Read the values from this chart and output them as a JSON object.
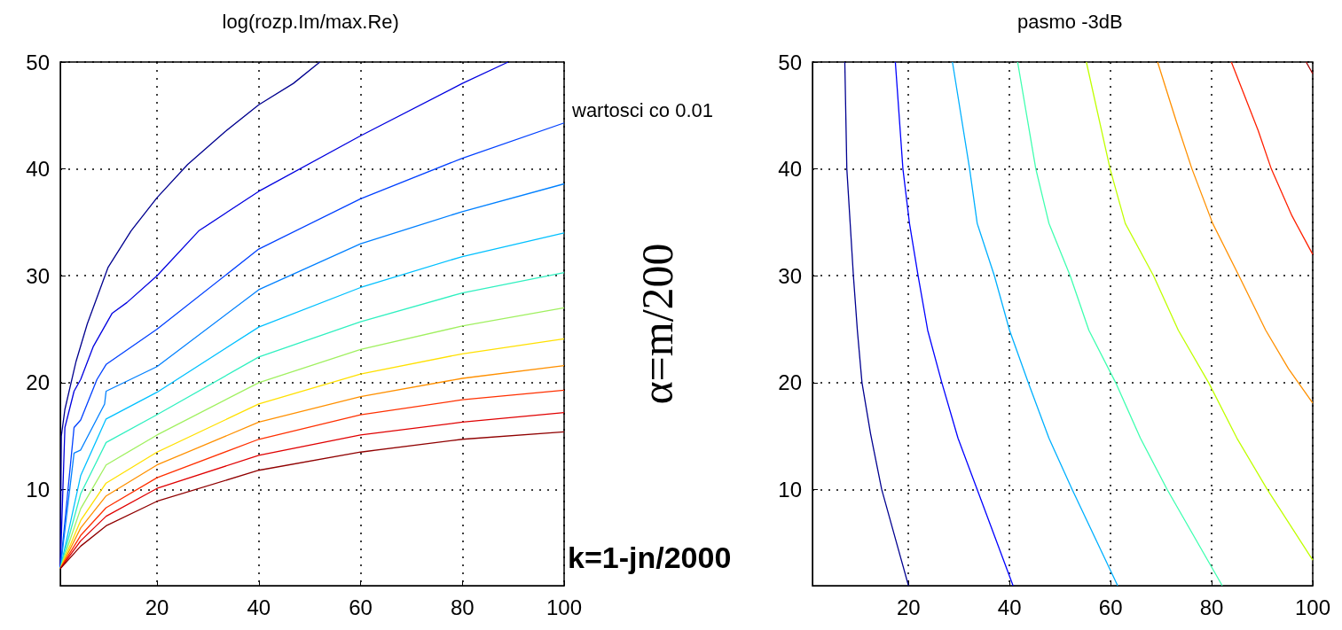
{
  "chart_data": [
    {
      "type": "line",
      "title": "log(rozp.Im/max.Re)",
      "xlim": [
        1,
        100
      ],
      "ylim": [
        1,
        50
      ],
      "xticks": [
        20,
        40,
        60,
        80,
        100
      ],
      "yticks": [
        10,
        20,
        30,
        40,
        50
      ],
      "grid": true,
      "marker": "none",
      "line_style": "solid",
      "annotations": [
        "wartosci co 0.01",
        "k=1-jn/2000"
      ],
      "series": [
        {
          "color": "#00008f",
          "x": [
            1,
            1.2,
            1.9,
            4.1,
            6.3,
            10.4,
            14.9,
            20,
            26,
            33.4,
            40,
            46.8,
            52
          ],
          "values": [
            2.6,
            15,
            17.5,
            22,
            25.5,
            30.8,
            34.2,
            37.3,
            40.4,
            43.5,
            46,
            48,
            50
          ]
        },
        {
          "color": "#0000e0",
          "x": [
            1,
            1.9,
            3.7,
            5,
            7.5,
            11.2,
            14.1,
            20,
            28.2,
            40,
            60,
            80,
            89
          ],
          "values": [
            2.6,
            15.8,
            19.2,
            20.3,
            23.4,
            26.5,
            27.5,
            30,
            34.2,
            37.9,
            43.1,
            48,
            50
          ]
        },
        {
          "color": "#0040ff",
          "x": [
            1,
            3.7,
            5,
            8.2,
            10,
            20,
            40,
            60,
            80,
            100
          ],
          "values": [
            2.6,
            15.8,
            16.5,
            20.3,
            21.7,
            25,
            32.5,
            37.2,
            41,
            44.3
          ]
        },
        {
          "color": "#0080ff",
          "x": [
            1,
            3.7,
            5,
            9.7,
            10,
            20,
            40,
            60,
            80,
            100
          ],
          "values": [
            2.6,
            13.4,
            13.7,
            18,
            19.2,
            21.5,
            28.7,
            33,
            36,
            38.6
          ]
        },
        {
          "color": "#00c0ff",
          "x": [
            1,
            5,
            10,
            20,
            40,
            60,
            80,
            100
          ],
          "values": [
            2.6,
            11.3,
            16.6,
            19.1,
            25.2,
            28.9,
            31.8,
            34
          ]
        },
        {
          "color": "#30f0c0",
          "x": [
            1,
            5,
            10,
            20,
            40,
            60,
            80,
            100
          ],
          "values": [
            2.6,
            9.6,
            14.4,
            17,
            22.4,
            25.7,
            28.4,
            30.3
          ]
        },
        {
          "color": "#a0f060",
          "x": [
            1,
            5,
            10,
            20,
            40,
            60,
            80,
            100
          ],
          "values": [
            2.6,
            8.2,
            12.3,
            15.1,
            20,
            23.1,
            25.3,
            27
          ]
        },
        {
          "color": "#ffe000",
          "x": [
            1,
            5,
            10,
            20,
            40,
            60,
            80,
            100
          ],
          "values": [
            2.6,
            7.1,
            10.6,
            13.5,
            18,
            20.8,
            22.7,
            24.1
          ]
        },
        {
          "color": "#ff9000",
          "x": [
            1,
            5,
            10,
            20,
            40,
            60,
            80,
            100
          ],
          "values": [
            2.6,
            6.4,
            9.4,
            12.3,
            16.3,
            18.7,
            20.4,
            21.6
          ]
        },
        {
          "color": "#ff3000",
          "x": [
            1,
            5,
            10,
            20,
            40,
            60,
            80,
            100
          ],
          "values": [
            2.6,
            5.7,
            8.3,
            11.1,
            14.7,
            17,
            18.4,
            19.3
          ]
        },
        {
          "color": "#e00000",
          "x": [
            1,
            5,
            10,
            20,
            40,
            60,
            80,
            100
          ],
          "values": [
            2.6,
            5.2,
            7.5,
            10.1,
            13.2,
            15.1,
            16.3,
            17.2
          ]
        },
        {
          "color": "#900000",
          "x": [
            1,
            5,
            10,
            20,
            40,
            60,
            80,
            100
          ],
          "values": [
            2.6,
            4.7,
            6.6,
            8.9,
            11.8,
            13.5,
            14.7,
            15.4
          ]
        }
      ]
    },
    {
      "type": "line",
      "title": "pasmo -3dB",
      "ylabel": "α=m/200",
      "xlim": [
        1,
        100
      ],
      "ylim": [
        1,
        50
      ],
      "xticks": [
        20,
        40,
        60,
        80,
        100
      ],
      "yticks": [
        10,
        20,
        30,
        40,
        50
      ],
      "grid": true,
      "marker": "none",
      "line_style": "solid",
      "series": [
        {
          "color": "#000090",
          "x": [
            7.4,
            7.8,
            9.1,
            9.9,
            10.8,
            12.5,
            14.7,
            20
          ],
          "values": [
            50,
            40,
            30,
            24.8,
            20,
            15.2,
            10,
            1
          ]
        },
        {
          "color": "#0000ff",
          "x": [
            17.4,
            18.9,
            20.2,
            21.9,
            23.8,
            26.6,
            29.8,
            33.6,
            40.7
          ],
          "values": [
            50,
            40,
            34.9,
            30,
            24.9,
            20,
            14.8,
            10,
            1
          ]
        },
        {
          "color": "#00b0ff",
          "x": [
            28.7,
            32.1,
            33.6,
            37,
            40,
            43.7,
            47.8,
            52.4,
            61.4
          ],
          "values": [
            50,
            40,
            34.9,
            30,
            24.9,
            20,
            14.8,
            10,
            1
          ]
        },
        {
          "color": "#40ffb0",
          "x": [
            41.6,
            45.2,
            47.8,
            52,
            55.7,
            61,
            65.9,
            71.2,
            82.1
          ],
          "values": [
            50,
            40,
            34.9,
            30,
            24.9,
            20,
            14.8,
            10,
            1
          ]
        },
        {
          "color": "#c0ff00",
          "x": [
            55.2,
            59.9,
            62.9,
            68.5,
            73.4,
            79.4,
            85,
            91,
            100
          ],
          "values": [
            50,
            40,
            34.9,
            30,
            24.9,
            20,
            14.8,
            10,
            3.4
          ]
        },
        {
          "color": "#ff9000",
          "x": [
            69.3,
            73.1,
            76.1,
            80.2,
            85.4,
            90.7,
            95.2,
            100
          ],
          "values": [
            50,
            44.3,
            40,
            34.9,
            30,
            24.9,
            21.3,
            18.1
          ]
        },
        {
          "color": "#ff2000",
          "x": [
            83.9,
            89.2,
            91.8,
            95.9,
            100
          ],
          "values": [
            50,
            43.6,
            40,
            35.6,
            32
          ]
        },
        {
          "color": "#a00000",
          "x": [
            98.7,
            100
          ],
          "values": [
            50,
            48.9
          ]
        }
      ]
    }
  ]
}
